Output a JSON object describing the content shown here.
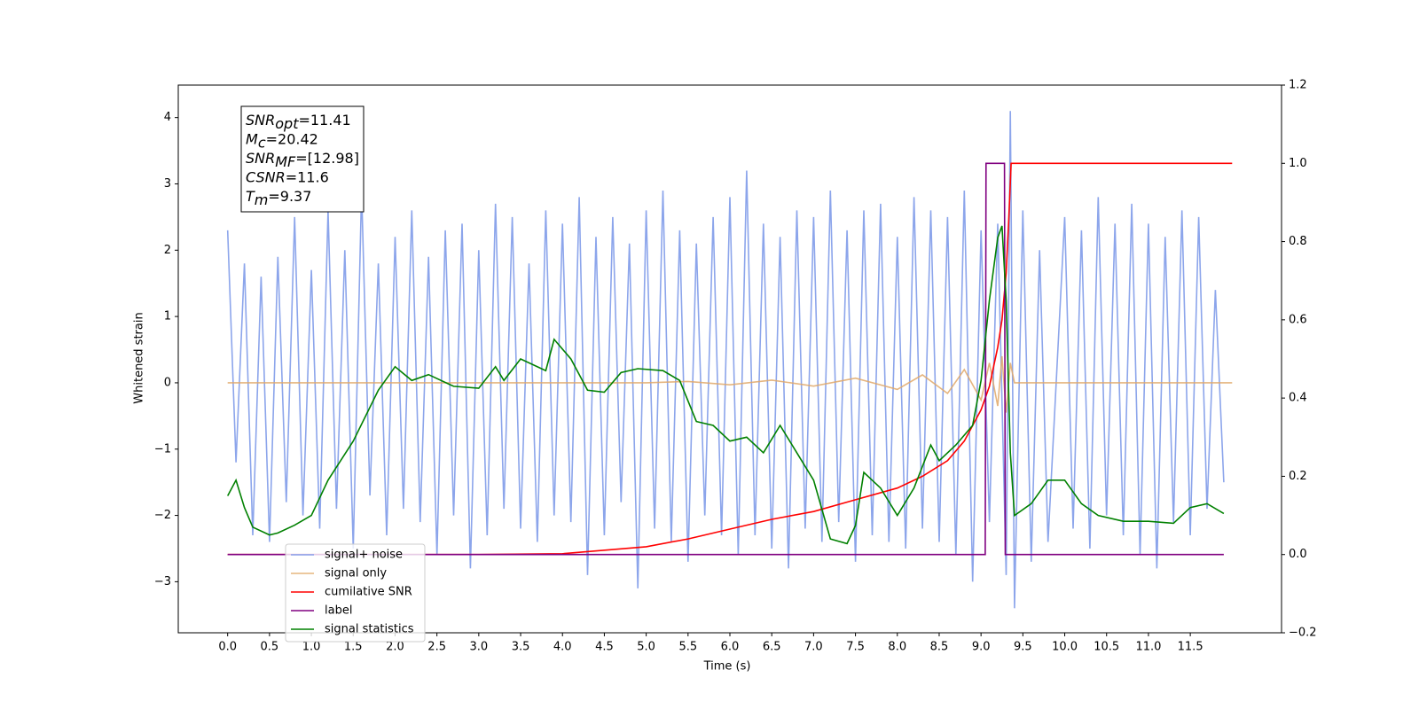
{
  "chart_data": {
    "type": "line",
    "xlabel": "Time (s)",
    "ylabel": "Whitened strain",
    "xlim": [
      -0.59,
      12.59
    ],
    "ylim": [
      -3.77,
      4.49
    ],
    "y2lim": [
      -0.2,
      1.2
    ],
    "xticks": [
      {
        "value": 0,
        "label": "0.0"
      },
      0.5,
      {
        "value": 1,
        "label": "1.0"
      },
      1.5,
      {
        "value": 2,
        "label": "2.0"
      },
      2.5,
      {
        "value": 3,
        "label": "3.0"
      },
      3.5,
      {
        "value": 4,
        "label": "4.0"
      },
      4.5,
      {
        "value": 5,
        "label": "5.0"
      },
      5.5,
      {
        "value": 6,
        "label": "6.0"
      },
      6.5,
      {
        "value": 7,
        "label": "7.0"
      },
      7.5,
      {
        "value": 8,
        "label": "8.0"
      },
      8.5,
      {
        "value": 9,
        "label": "9.0"
      },
      9.5,
      {
        "value": 10,
        "label": "10.0"
      },
      10.5,
      {
        "value": 11,
        "label": "11.0"
      },
      11.5
    ],
    "yticks": [
      {
        "value": -3,
        "label": "−3"
      },
      {
        "value": -2,
        "label": "−2"
      },
      {
        "value": -1,
        "label": "−1"
      },
      0,
      1,
      2,
      3,
      4
    ],
    "y2ticks": [
      {
        "value": -0.2,
        "label": "−0.2"
      },
      {
        "value": 0,
        "label": "0.0"
      },
      0.2,
      0.4,
      0.6,
      0.8,
      {
        "value": 1,
        "label": "1.0"
      },
      1.2
    ],
    "legend": "lower left",
    "annotation": [
      {
        "symbol": "SNR",
        "sub": "opt",
        "text": "=11.41"
      },
      {
        "symbol": "M",
        "sub": "c",
        "text": "=20.42"
      },
      {
        "symbol": "SNR",
        "sub": "MF",
        "text": "=[12.98]"
      },
      {
        "symbol": "CSNR",
        "text": "=11.6"
      },
      {
        "symbol": "T",
        "sub": "m",
        "text": "=9.37"
      }
    ],
    "series": [
      {
        "name": "signal+ noise",
        "color": "#7895e8",
        "x": [
          0,
          0.1,
          0.2,
          0.3,
          0.4,
          0.5,
          0.6,
          0.7,
          0.8,
          0.9,
          1,
          1.1,
          1.2,
          1.3,
          1.4,
          1.5,
          1.6,
          1.7,
          1.8,
          1.9,
          2,
          2.1,
          2.2,
          2.3,
          2.4,
          2.5,
          2.6,
          2.7,
          2.8,
          2.9,
          3,
          3.1,
          3.2,
          3.3,
          3.4,
          3.5,
          3.6,
          3.7,
          3.8,
          3.9,
          4,
          4.1,
          4.2,
          4.3,
          4.4,
          4.5,
          4.6,
          4.7,
          4.8,
          4.9,
          5,
          5.1,
          5.2,
          5.3,
          5.4,
          5.5,
          5.6,
          5.7,
          5.8,
          5.9,
          6,
          6.1,
          6.2,
          6.3,
          6.4,
          6.5,
          6.6,
          6.7,
          6.8,
          6.9,
          7,
          7.1,
          7.2,
          7.3,
          7.4,
          7.5,
          7.6,
          7.7,
          7.8,
          7.9,
          8,
          8.1,
          8.2,
          8.3,
          8.4,
          8.5,
          8.6,
          8.7,
          8.8,
          8.9,
          9,
          9.1,
          9.2,
          9.3,
          9.35,
          9.4,
          9.5,
          9.6,
          9.7,
          9.8,
          10,
          10.1,
          10.2,
          10.3,
          10.4,
          10.5,
          10.6,
          10.7,
          10.8,
          10.9,
          11,
          11.1,
          11.2,
          11.3,
          11.4,
          11.5,
          11.6,
          11.7,
          11.8,
          11.9
        ],
        "values": [
          2.3,
          -1.2,
          1.8,
          -2.3,
          1.6,
          -2.4,
          1.9,
          -1.8,
          2.5,
          -2.0,
          1.7,
          -2.2,
          2.6,
          -1.9,
          2.0,
          -2.5,
          2.9,
          -1.7,
          1.8,
          -2.3,
          2.2,
          -1.9,
          2.6,
          -2.1,
          1.9,
          -2.6,
          2.3,
          -2.0,
          2.4,
          -2.8,
          2.0,
          -2.3,
          2.7,
          -1.9,
          2.5,
          -2.2,
          1.8,
          -2.4,
          2.6,
          -2.0,
          2.4,
          -2.1,
          2.8,
          -2.9,
          2.2,
          -2.3,
          2.5,
          -1.8,
          2.1,
          -3.1,
          2.6,
          -2.2,
          2.9,
          -2.4,
          2.3,
          -2.7,
          2.1,
          -2.0,
          2.5,
          -2.3,
          2.8,
          -2.6,
          3.2,
          -2.3,
          2.4,
          -2.5,
          2.2,
          -2.8,
          2.6,
          -2.2,
          2.5,
          -2.4,
          2.9,
          -2.1,
          2.3,
          -2.7,
          2.6,
          -2.3,
          2.7,
          -2.4,
          2.2,
          -2.5,
          2.8,
          -2.2,
          2.6,
          -2.4,
          2.5,
          -2.6,
          2.9,
          -3.0,
          2.3,
          -2.1,
          2.4,
          -2.9,
          4.1,
          -3.4,
          2.6,
          -2.7,
          2.0,
          -2.4,
          2.5,
          -2.2,
          2.3,
          -2.5,
          2.8,
          -2.0,
          2.4,
          -2.3,
          2.7,
          -2.6,
          2.4,
          -2.8,
          2.2,
          -2.1,
          2.6,
          -2.3,
          2.5,
          -1.9,
          1.4,
          -1.5
        ]
      },
      {
        "name": "signal only",
        "color": "#e0a868",
        "x": [
          0,
          5,
          5.5,
          6,
          6.5,
          7,
          7.5,
          8,
          8.3,
          8.6,
          8.8,
          9.0,
          9.1,
          9.2,
          9.25,
          9.3,
          9.35,
          9.4,
          12
        ],
        "values": [
          0,
          0,
          0.02,
          -0.03,
          0.04,
          -0.05,
          0.07,
          -0.1,
          0.12,
          -0.16,
          0.2,
          -0.26,
          0.3,
          -0.35,
          0.4,
          -0.45,
          0.3,
          0,
          0
        ]
      },
      {
        "name": "cumilative SNR",
        "color": "#ff0000",
        "axis": "y2",
        "x": [
          0,
          3,
          4,
          5,
          5.5,
          6,
          6.5,
          7,
          7.5,
          8,
          8.3,
          8.6,
          8.8,
          9.0,
          9.1,
          9.2,
          9.25,
          9.3,
          9.33,
          9.36,
          12
        ],
        "values": [
          0,
          0,
          0.002,
          0.02,
          0.04,
          0.065,
          0.09,
          0.11,
          0.14,
          0.17,
          0.2,
          0.24,
          0.29,
          0.37,
          0.43,
          0.53,
          0.6,
          0.72,
          0.85,
          1.0,
          1.0
        ]
      },
      {
        "name": "label",
        "color": "#800080",
        "axis": "y2",
        "x": [
          0,
          9.05,
          9.06,
          9.28,
          9.29,
          11.9
        ],
        "values": [
          0,
          0,
          1,
          1,
          0,
          0
        ]
      },
      {
        "name": "signal statistics",
        "color": "#008000",
        "axis": "y2",
        "x": [
          0,
          0.1,
          0.2,
          0.3,
          0.5,
          0.6,
          0.8,
          1.0,
          1.2,
          1.5,
          1.8,
          2.0,
          2.2,
          2.4,
          2.7,
          3.0,
          3.2,
          3.3,
          3.5,
          3.8,
          3.9,
          4.1,
          4.3,
          4.5,
          4.7,
          4.9,
          5.2,
          5.4,
          5.6,
          5.8,
          6.0,
          6.2,
          6.4,
          6.6,
          6.8,
          7.0,
          7.2,
          7.4,
          7.5,
          7.6,
          7.8,
          8.0,
          8.2,
          8.4,
          8.5,
          8.7,
          8.9,
          9.0,
          9.1,
          9.2,
          9.25,
          9.3,
          9.35,
          9.4,
          9.6,
          9.8,
          10.0,
          10.2,
          10.4,
          10.7,
          11.0,
          11.3,
          11.5,
          11.7,
          11.9
        ],
        "values": [
          0.15,
          0.19,
          0.12,
          0.07,
          0.05,
          0.055,
          0.075,
          0.1,
          0.19,
          0.29,
          0.42,
          0.48,
          0.445,
          0.46,
          0.43,
          0.425,
          0.48,
          0.445,
          0.5,
          0.47,
          0.55,
          0.5,
          0.42,
          0.415,
          0.465,
          0.475,
          0.47,
          0.445,
          0.34,
          0.33,
          0.29,
          0.3,
          0.26,
          0.33,
          0.26,
          0.19,
          0.04,
          0.028,
          0.074,
          0.21,
          0.17,
          0.1,
          0.17,
          0.28,
          0.24,
          0.28,
          0.33,
          0.445,
          0.65,
          0.81,
          0.84,
          0.65,
          0.26,
          0.1,
          0.13,
          0.19,
          0.19,
          0.13,
          0.1,
          0.085,
          0.085,
          0.08,
          0.12,
          0.13,
          0.105
        ]
      }
    ]
  }
}
